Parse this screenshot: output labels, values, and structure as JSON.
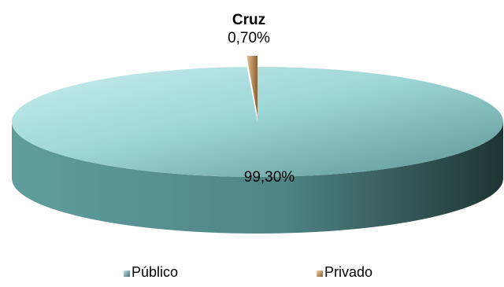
{
  "chart_data": {
    "type": "pie",
    "title": "Cruz",
    "categories": [
      "Público",
      "Privado"
    ],
    "values": [
      99.3,
      0.7
    ],
    "data_labels": [
      "99,30%",
      "0,70%"
    ],
    "colors": {
      "Público": "#8fcfcf",
      "Privado": "#c8a070"
    },
    "legend_placement": "bottom",
    "style": "3d-tilted"
  }
}
